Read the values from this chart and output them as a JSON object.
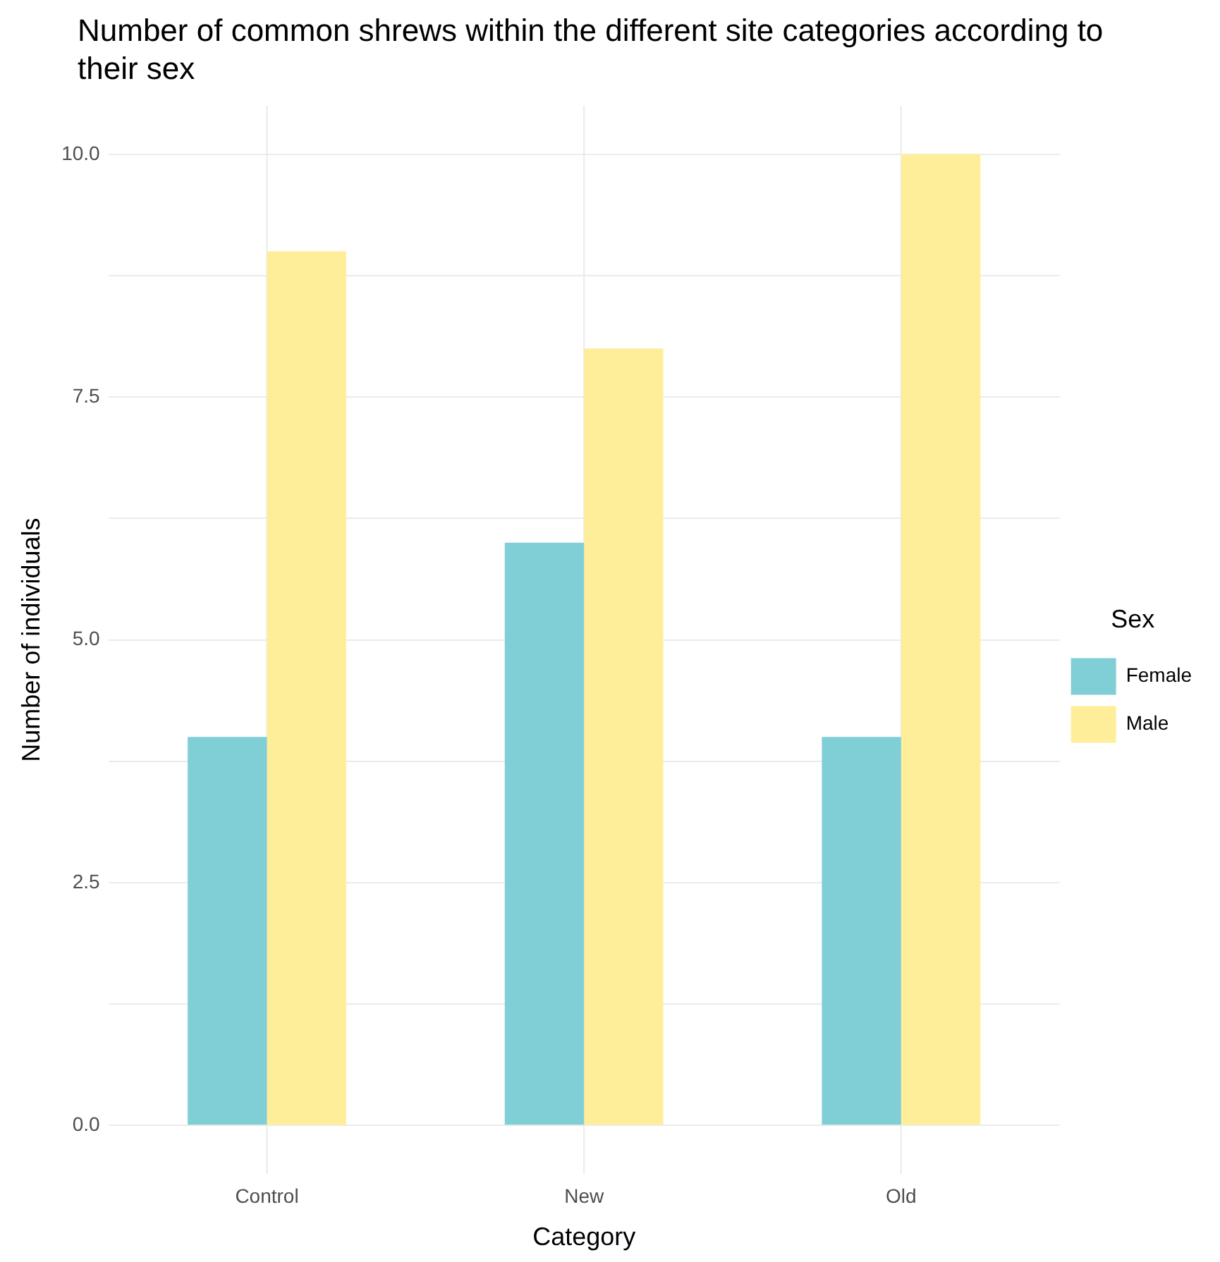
{
  "chart_data": {
    "type": "bar",
    "title": "Number of common shrews within the different site categories according to their sex",
    "xlabel": "Category",
    "ylabel": "Number of individuals",
    "legend_title": "Sex",
    "categories": [
      "Control",
      "New",
      "Old"
    ],
    "series": [
      {
        "name": "Female",
        "color": "#80cfd6",
        "values": [
          4,
          6,
          4
        ]
      },
      {
        "name": "Male",
        "color": "#ffee99",
        "values": [
          9,
          8,
          10
        ]
      }
    ],
    "ylim": [
      -0.5,
      10.5
    ],
    "yticks": [
      {
        "value": 0,
        "label": "0.0"
      },
      {
        "value": 1.25,
        "label": null
      },
      2.5,
      {
        "value": 3.75,
        "label": null
      },
      {
        "value": 5,
        "label": "5.0"
      },
      {
        "value": 6.25,
        "label": null
      },
      7.5,
      {
        "value": 8.75,
        "label": null
      },
      {
        "value": 10,
        "label": "10.0"
      }
    ],
    "grid": true,
    "legend": "right"
  }
}
